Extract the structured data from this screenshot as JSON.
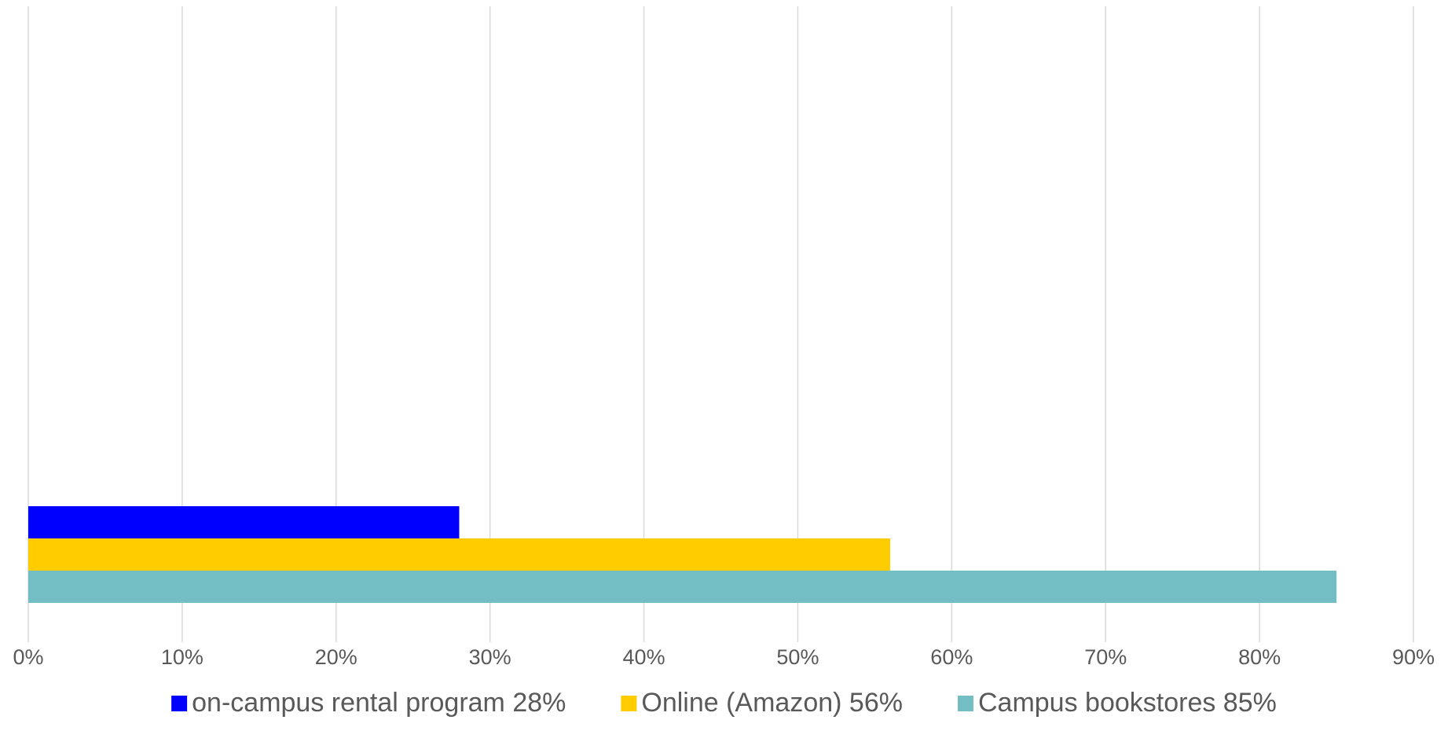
{
  "chart_data": {
    "type": "bar",
    "orientation": "horizontal",
    "title": "",
    "xlabel": "",
    "ylabel": "",
    "xlim": [
      0,
      90
    ],
    "x_ticks": [
      "0%",
      "10%",
      "20%",
      "30%",
      "40%",
      "50%",
      "60%",
      "70%",
      "80%",
      "90%"
    ],
    "grid": "vertical",
    "legend_position": "bottom",
    "series": [
      {
        "name": "on-campus rental program 28%",
        "value": 28,
        "color": "#0000FF"
      },
      {
        "name": "Online (Amazon) 56%",
        "value": 56,
        "color": "#FFCC00"
      },
      {
        "name": "Campus bookstores 85%",
        "value": 85,
        "color": "#72BEC4"
      }
    ]
  }
}
